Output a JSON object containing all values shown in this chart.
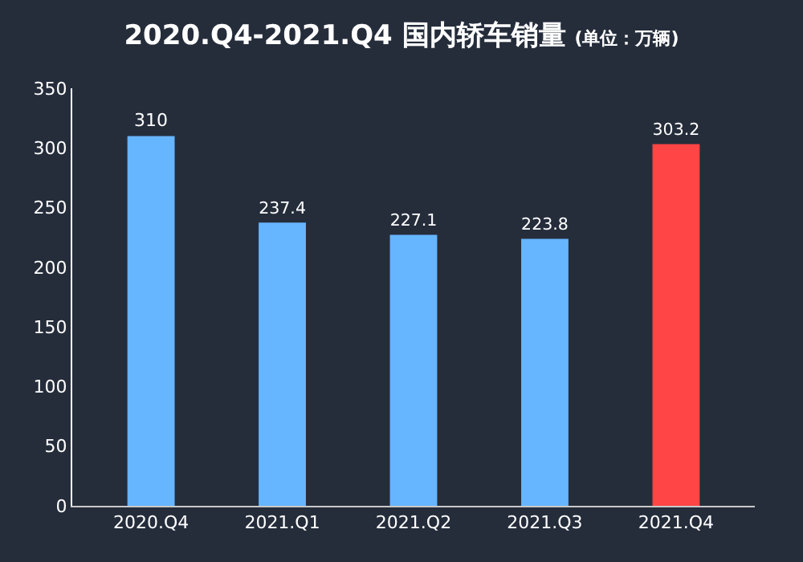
{
  "chart_data": {
    "type": "bar",
    "title": "2020.Q4-2021.Q4 国内轿车销量",
    "subtitle": "(单位：万辆)",
    "categories": [
      "2020.Q4",
      "2021.Q1",
      "2021.Q2",
      "2021.Q3",
      "2021.Q4"
    ],
    "values": [
      310,
      237.4,
      227.1,
      223.8,
      303.2
    ],
    "colors": [
      "#66b5ff",
      "#66b5ff",
      "#66b5ff",
      "#66b5ff",
      "#ff4545"
    ],
    "ylim": [
      0,
      350
    ],
    "yticks": [
      0,
      50,
      100,
      150,
      200,
      250,
      300,
      350
    ],
    "grid": false,
    "data_labels": true
  }
}
